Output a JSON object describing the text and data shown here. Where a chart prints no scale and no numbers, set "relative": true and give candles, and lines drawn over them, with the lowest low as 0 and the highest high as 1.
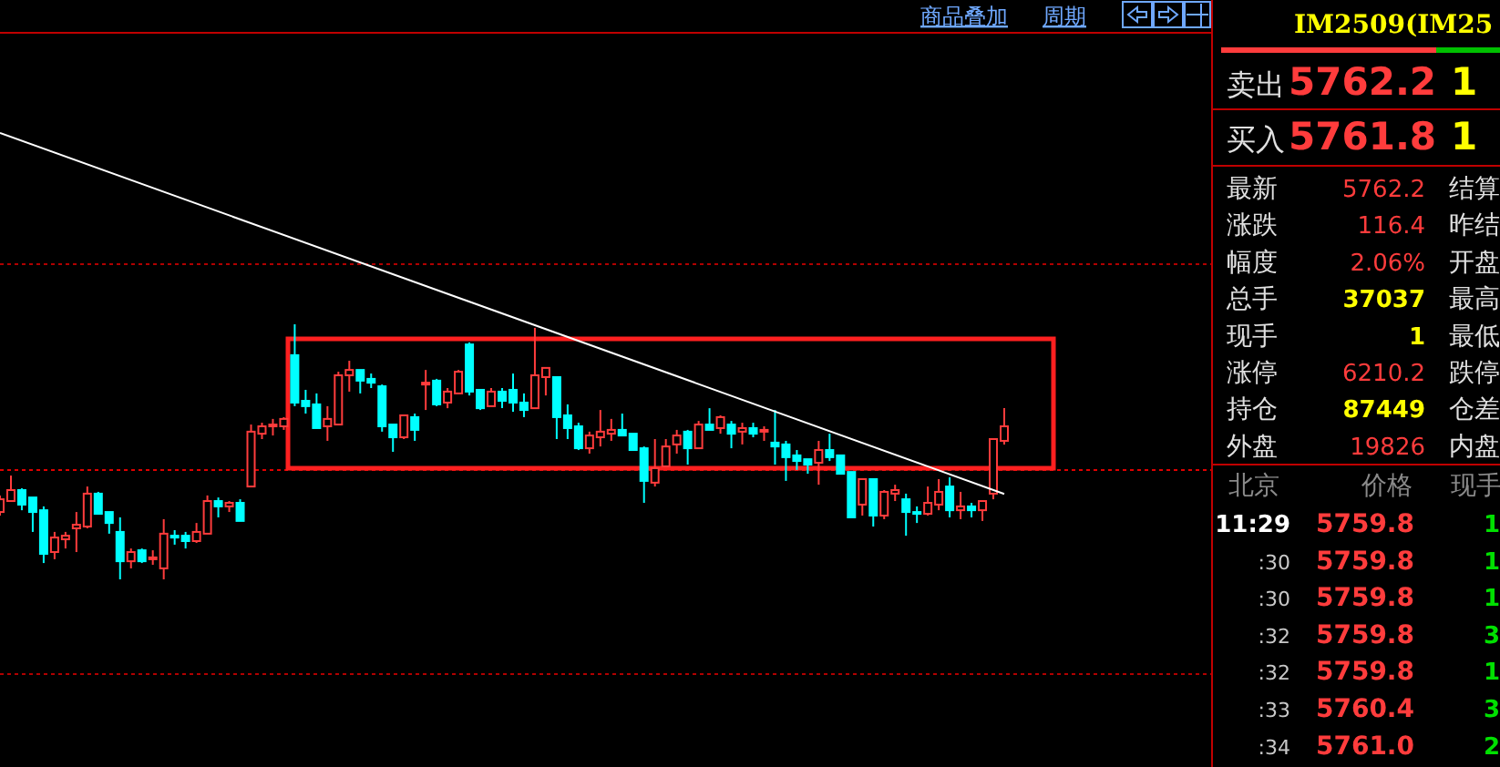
{
  "chart_data": [
    {
      "type": "candlestick",
      "relative": true,
      "categories": [
        null,
        null,
        null,
        null,
        null,
        null,
        null,
        null,
        null,
        null,
        null,
        null,
        null,
        null,
        null,
        null,
        null,
        null,
        null,
        null,
        null,
        null,
        null,
        null,
        null,
        null,
        null,
        null,
        null,
        null,
        null,
        null,
        null,
        null,
        null,
        null,
        null,
        null,
        null,
        null,
        null,
        null,
        null,
        null,
        null,
        null,
        null,
        null,
        null,
        null,
        null,
        null,
        null,
        null,
        null,
        null,
        null,
        null,
        null,
        null,
        null,
        null,
        null,
        null,
        null,
        null,
        null,
        null,
        null,
        null,
        null,
        null,
        null,
        null,
        null,
        null,
        null,
        null,
        null,
        null,
        null,
        null,
        null,
        null,
        null,
        null,
        null,
        null,
        null,
        null,
        null,
        null,
        null
      ],
      "ohlc": [
        [
          0.264,
          0.329,
          0.25,
          0.314
        ],
        [
          0.307,
          0.407,
          0.307,
          0.35
        ],
        [
          0.35,
          0.357,
          0.271,
          0.293
        ],
        [
          0.321,
          0.321,
          0.186,
          0.264
        ],
        [
          0.271,
          0.286,
          0.064,
          0.1
        ],
        [
          0.107,
          0.186,
          0.079,
          0.164
        ],
        [
          0.157,
          0.186,
          0.121,
          0.171
        ],
        [
          0.2,
          0.264,
          0.107,
          0.214
        ],
        [
          0.207,
          0.364,
          0.2,
          0.336
        ],
        [
          0.336,
          0.343,
          0.257,
          0.257
        ],
        [
          0.264,
          0.264,
          0.179,
          0.221
        ],
        [
          0.186,
          0.243,
          0,
          0.071
        ],
        [
          0.071,
          0.121,
          0.043,
          0.107
        ],
        [
          0.114,
          0.121,
          0.064,
          0.071
        ],
        [
          0.079,
          0.114,
          0.057,
          0.086
        ],
        [
          0.043,
          0.236,
          0,
          0.179
        ],
        [
          0.171,
          0.193,
          0.136,
          0.164
        ],
        [
          0.171,
          0.186,
          0.121,
          0.15
        ],
        [
          0.15,
          0.221,
          0.143,
          0.186
        ],
        [
          0.179,
          0.329,
          0.179,
          0.307
        ],
        [
          0.307,
          0.321,
          0.243,
          0.286
        ],
        [
          0.286,
          0.307,
          0.264,
          0.3
        ],
        [
          0.3,
          0.314,
          0.229,
          0.229
        ],
        [
          0.364,
          0.607,
          0.364,
          0.579
        ],
        [
          0.571,
          0.614,
          0.55,
          0.6
        ],
        [
          0.6,
          0.629,
          0.564,
          0.607
        ],
        [
          0.6,
          0.636,
          0.586,
          0.629
        ],
        [
          0.879,
          1,
          0.679,
          0.693
        ],
        [
          0.7,
          0.743,
          0.65,
          0.679
        ],
        [
          0.686,
          0.729,
          0.593,
          0.593
        ],
        [
          0.6,
          0.679,
          0.543,
          0.629
        ],
        [
          0.607,
          0.814,
          0.607,
          0.8
        ],
        [
          0.8,
          0.857,
          0.736,
          0.821
        ],
        [
          0.821,
          0.821,
          0.729,
          0.779
        ],
        [
          0.786,
          0.807,
          0.75,
          0.771
        ],
        [
          0.757,
          0.764,
          0.579,
          0.6
        ],
        [
          0.607,
          0.607,
          0.5,
          0.557
        ],
        [
          0.557,
          0.643,
          0.55,
          0.643
        ],
        [
          0.636,
          0.65,
          0.543,
          0.586
        ],
        [
          0.764,
          0.821,
          0.664,
          0.771
        ],
        [
          0.779,
          0.786,
          0.679,
          0.686
        ],
        [
          0.693,
          0.75,
          0.671,
          0.736
        ],
        [
          0.729,
          0.821,
          0.729,
          0.814
        ],
        [
          0.921,
          0.929,
          0.721,
          0.736
        ],
        [
          0.743,
          0.743,
          0.664,
          0.671
        ],
        [
          0.679,
          0.75,
          0.679,
          0.736
        ],
        [
          0.736,
          0.75,
          0.671,
          0.7
        ],
        [
          0.743,
          0.807,
          0.657,
          0.693
        ],
        [
          0.693,
          0.729,
          0.636,
          0.664
        ],
        [
          0.671,
          0.986,
          0.671,
          0.8
        ],
        [
          0.793,
          0.829,
          0.721,
          0.829
        ],
        [
          0.793,
          0.793,
          0.55,
          0.636
        ],
        [
          0.643,
          0.686,
          0.55,
          0.593
        ],
        [
          0.6,
          0.614,
          0.507,
          0.514
        ],
        [
          0.514,
          0.579,
          0.493,
          0.564
        ],
        [
          0.557,
          0.664,
          0.521,
          0.579
        ],
        [
          0.571,
          0.629,
          0.543,
          0.586
        ],
        [
          0.586,
          0.65,
          0.564,
          0.564
        ],
        [
          0.571,
          0.571,
          0.507,
          0.507
        ],
        [
          0.514,
          0.521,
          0.3,
          0.386
        ],
        [
          0.379,
          0.55,
          0.364,
          0.436
        ],
        [
          0.443,
          0.55,
          0.443,
          0.521
        ],
        [
          0.529,
          0.586,
          0.493,
          0.564
        ],
        [
          0.579,
          0.586,
          0.45,
          0.514
        ],
        [
          0.514,
          0.621,
          0.514,
          0.607
        ],
        [
          0.607,
          0.671,
          0.586,
          0.586
        ],
        [
          0.593,
          0.643,
          0.571,
          0.636
        ],
        [
          0.607,
          0.621,
          0.514,
          0.571
        ],
        [
          0.579,
          0.614,
          0.529,
          0.593
        ],
        [
          0.593,
          0.614,
          0.557,
          0.571
        ],
        [
          0.579,
          0.6,
          0.543,
          0.586
        ],
        [
          0.536,
          0.664,
          0.45,
          0.521
        ],
        [
          0.529,
          0.543,
          0.386,
          0.479
        ],
        [
          0.486,
          0.507,
          0.429,
          0.464
        ],
        [
          0.471,
          0.471,
          0.414,
          0.45
        ],
        [
          0.457,
          0.543,
          0.371,
          0.507
        ],
        [
          0.507,
          0.571,
          0.464,
          0.479
        ],
        [
          0.486,
          0.486,
          0.414,
          0.414
        ],
        [
          0.421,
          0.421,
          0.243,
          0.243
        ],
        [
          0.293,
          0.393,
          0.25,
          0.393
        ],
        [
          0.393,
          0.393,
          0.207,
          0.25
        ],
        [
          0.25,
          0.35,
          0.236,
          0.343
        ],
        [
          0.336,
          0.371,
          0.307,
          0.35
        ],
        [
          0.314,
          0.336,
          0.171,
          0.264
        ],
        [
          0.264,
          0.286,
          0.221,
          0.257
        ],
        [
          0.257,
          0.364,
          0.25,
          0.3
        ],
        [
          0.293,
          0.393,
          0.271,
          0.343
        ],
        [
          0.364,
          0.4,
          0.243,
          0.271
        ],
        [
          0.271,
          0.343,
          0.236,
          0.286
        ],
        [
          0.286,
          0.3,
          0.243,
          0.271
        ],
        [
          0.271,
          0.307,
          0.229,
          0.307
        ],
        [
          0.336,
          0.55,
          0.314,
          0.55
        ],
        [
          0.543,
          0.671,
          0.529,
          0.6
        ]
      ],
      "series": [
        {
          "type": "line",
          "values": [
            1.75,
            null,
            null,
            null,
            null,
            null,
            null,
            null,
            null,
            null,
            null,
            null,
            null,
            null,
            null,
            null,
            null,
            null,
            null,
            null,
            null,
            null,
            null,
            null,
            null,
            null,
            null,
            null,
            null,
            null,
            null,
            null,
            null,
            null,
            null,
            null,
            null,
            null,
            null,
            null,
            null,
            null,
            null,
            null,
            null,
            null,
            null,
            null,
            null,
            null,
            null,
            null,
            null,
            null,
            null,
            null,
            null,
            null,
            null,
            null,
            null,
            null,
            null,
            null,
            null,
            null,
            null,
            null,
            null,
            null,
            null,
            null,
            null,
            null,
            null,
            null,
            null,
            null,
            null,
            null,
            null,
            null,
            null,
            null,
            null,
            null,
            null,
            null,
            null,
            null,
            null,
            null,
            0.335
          ],
          "color": "#ffffff"
        }
      ],
      "ref_lines": [
        {
          "axis": "y",
          "value": 1.236,
          "color": "#b00000",
          "line_style": "dotted"
        },
        {
          "axis": "y",
          "value": 0.429,
          "color": "#e00000",
          "line_style": "dotted"
        },
        {
          "axis": "y",
          "value": -0.371,
          "color": "#b00000",
          "line_style": "dotted"
        }
      ],
      "annotations": [
        "商品叠加",
        "周期"
      ]
    },
    {
      "type": "other",
      "title": "IM2509(IM25",
      "annotations": [
        "卖出",
        "5762.2",
        "1",
        "买入",
        "5761.8",
        "1",
        "最新",
        "5762.2",
        "结算",
        "涨跌",
        "116.4",
        "昨结",
        "幅度",
        "2.06%",
        "开盘",
        "总手",
        "37037",
        "最高",
        "现手",
        "1",
        "最低",
        "涨停",
        "6210.2",
        "跌停",
        "持仓",
        "87449",
        "仓差",
        "外盘",
        "19826",
        "内盘",
        "北京",
        "价格",
        "现手",
        "11:29",
        "5759.8",
        "1",
        ":30",
        "5759.8",
        "1",
        ":30",
        "5759.8",
        "1",
        ":32",
        "5759.8",
        "3",
        ":32",
        "5759.8",
        "1",
        ":33",
        "5760.4",
        "3",
        ":34",
        "5761.0",
        "2"
      ]
    }
  ]
}
